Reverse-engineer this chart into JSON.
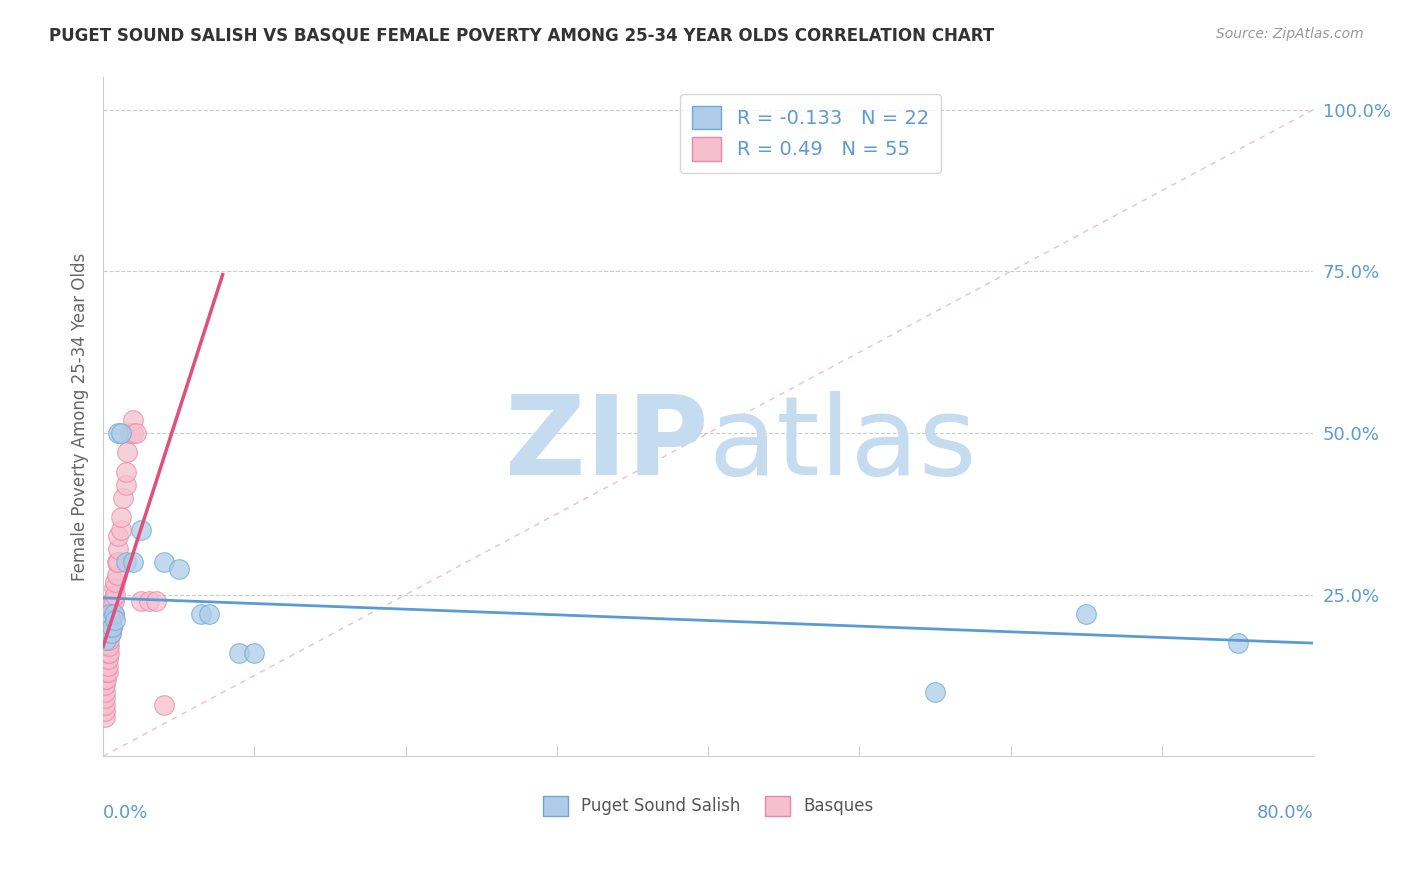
{
  "title": "PUGET SOUND SALISH VS BASQUE FEMALE POVERTY AMONG 25-34 YEAR OLDS CORRELATION CHART",
  "source": "Source: ZipAtlas.com",
  "ylabel": "Female Poverty Among 25-34 Year Olds",
  "xlim": [
    0.0,
    0.8
  ],
  "ylim": [
    0.0,
    1.05
  ],
  "ytick_values": [
    0.25,
    0.5,
    0.75,
    1.0
  ],
  "ytick_labels": [
    "25.0%",
    "50.0%",
    "75.0%",
    "100.0%"
  ],
  "series1_name": "Puget Sound Salish",
  "series1_R": -0.133,
  "series1_N": 22,
  "series1_color": "#aecce8",
  "series1_edge": "#6aaad4",
  "series2_name": "Basques",
  "series2_R": 0.49,
  "series2_N": 55,
  "series2_color": "#f5bfce",
  "series2_edge": "#e888a8",
  "trendline1_color": "#5b9bd5",
  "trendline2_color": "#e0507a",
  "diag_line_color": "#e8b0c0",
  "watermark": "ZIPatlas",
  "watermark_color": "#c5dcf0",
  "background_color": "#ffffff",
  "puget_x": [
    0.002,
    0.003,
    0.004,
    0.005,
    0.005,
    0.006,
    0.007,
    0.008,
    0.01,
    0.012,
    0.015,
    0.02,
    0.025,
    0.04,
    0.05,
    0.065,
    0.07,
    0.09,
    0.1,
    0.55,
    0.65,
    0.75
  ],
  "puget_y": [
    0.18,
    0.2,
    0.22,
    0.21,
    0.19,
    0.2,
    0.22,
    0.21,
    0.5,
    0.5,
    0.3,
    0.3,
    0.35,
    0.3,
    0.29,
    0.22,
    0.22,
    0.16,
    0.16,
    0.1,
    0.22,
    0.175
  ],
  "basque_x": [
    0.001,
    0.001,
    0.001,
    0.001,
    0.001,
    0.001,
    0.001,
    0.001,
    0.001,
    0.002,
    0.002,
    0.002,
    0.002,
    0.002,
    0.002,
    0.003,
    0.003,
    0.003,
    0.003,
    0.003,
    0.003,
    0.004,
    0.004,
    0.004,
    0.005,
    0.005,
    0.005,
    0.005,
    0.006,
    0.006,
    0.006,
    0.007,
    0.007,
    0.007,
    0.008,
    0.008,
    0.009,
    0.009,
    0.01,
    0.01,
    0.01,
    0.012,
    0.012,
    0.013,
    0.015,
    0.015,
    0.016,
    0.018,
    0.02,
    0.02,
    0.022,
    0.025,
    0.03,
    0.035,
    0.04
  ],
  "basque_y": [
    0.06,
    0.07,
    0.08,
    0.09,
    0.1,
    0.11,
    0.12,
    0.13,
    0.14,
    0.12,
    0.13,
    0.14,
    0.15,
    0.16,
    0.17,
    0.13,
    0.14,
    0.15,
    0.16,
    0.17,
    0.18,
    0.16,
    0.17,
    0.18,
    0.19,
    0.2,
    0.21,
    0.22,
    0.2,
    0.22,
    0.24,
    0.22,
    0.24,
    0.26,
    0.25,
    0.27,
    0.28,
    0.3,
    0.3,
    0.32,
    0.34,
    0.35,
    0.37,
    0.4,
    0.42,
    0.44,
    0.47,
    0.5,
    0.5,
    0.52,
    0.5,
    0.24,
    0.24,
    0.24,
    0.08
  ],
  "basque_trend_x0": 0.0,
  "basque_trend_x1": 0.079,
  "puget_trend_x0": 0.0,
  "puget_trend_x1": 0.8,
  "puget_trend_y0": 0.245,
  "puget_trend_y1": 0.175
}
